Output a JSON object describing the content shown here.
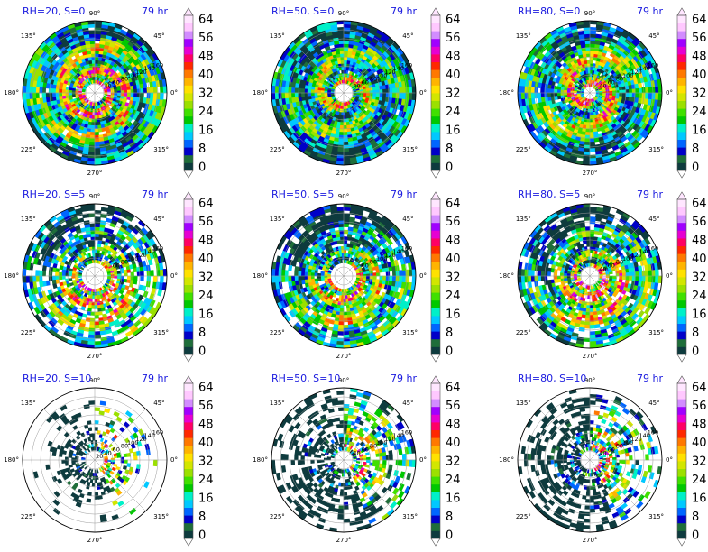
{
  "chart_data": {
    "type": "heatmap",
    "valid_time": "79 hr",
    "colorbar": {
      "ticks": [
        "0",
        "8",
        "16",
        "24",
        "32",
        "40",
        "48",
        "56",
        "64"
      ],
      "colors": [
        "#0e3b3e",
        "#1f6e3a",
        "#0000c8",
        "#0066ff",
        "#00c8ff",
        "#00f0c8",
        "#00c800",
        "#40e000",
        "#9be000",
        "#d2e600",
        "#ffe100",
        "#ffb400",
        "#ff7800",
        "#ff2800",
        "#ff0064",
        "#e600d2",
        "#a000ff",
        "#d28cff",
        "#ffc8ff",
        "#ffe6ff"
      ]
    },
    "angle_labels": [
      "90°",
      "45°",
      "0°",
      "315°",
      "270°",
      "225°",
      "180°",
      "135°"
    ],
    "radial_labels": [
      "20",
      "40",
      "60",
      "80",
      "100",
      "120",
      "140",
      "160"
    ],
    "panels": [
      {
        "title": "RH=20, S=0",
        "valid_time": "79 hr",
        "radial_ticks_shown": [
          "40",
          "60",
          "80",
          "100",
          "120",
          "140",
          "160"
        ]
      },
      {
        "title": "RH=50, S=0",
        "valid_time": "79 hr",
        "radial_ticks_shown": [
          "40",
          "60",
          "80",
          "100",
          "120",
          "140",
          "160"
        ]
      },
      {
        "title": "RH=80, S=0",
        "valid_time": "79 hr",
        "radial_ticks_shown": [
          "40",
          "60",
          "80",
          "100",
          "120",
          "140",
          "160"
        ]
      },
      {
        "title": "RH=20, S=5",
        "valid_time": "79 hr",
        "radial_ticks_shown": [
          "60",
          "80",
          "100",
          "120",
          "140",
          "160"
        ]
      },
      {
        "title": "RH=50, S=5",
        "valid_time": "79 hr",
        "radial_ticks_shown": [
          "60",
          "80",
          "100",
          "120",
          "140",
          "160"
        ]
      },
      {
        "title": "RH=80, S=5",
        "valid_time": "79 hr",
        "radial_ticks_shown": [
          "40",
          "60",
          "80",
          "100",
          "120",
          "140",
          "160"
        ]
      },
      {
        "title": "RH=20, S=10",
        "valid_time": "79 hr",
        "radial_ticks_shown": [
          "20",
          "40",
          "60",
          "80",
          "100",
          "120",
          "140",
          "160"
        ]
      },
      {
        "title": "RH=50, S=10",
        "valid_time": "79 hr",
        "radial_ticks_shown": [
          "40",
          "60",
          "80",
          "100",
          "120",
          "140",
          "160"
        ]
      },
      {
        "title": "RH=80, S=10",
        "valid_time": "79 hr",
        "radial_ticks_shown": [
          "40",
          "60",
          "80",
          "100",
          "120",
          "140",
          "160"
        ]
      }
    ]
  }
}
